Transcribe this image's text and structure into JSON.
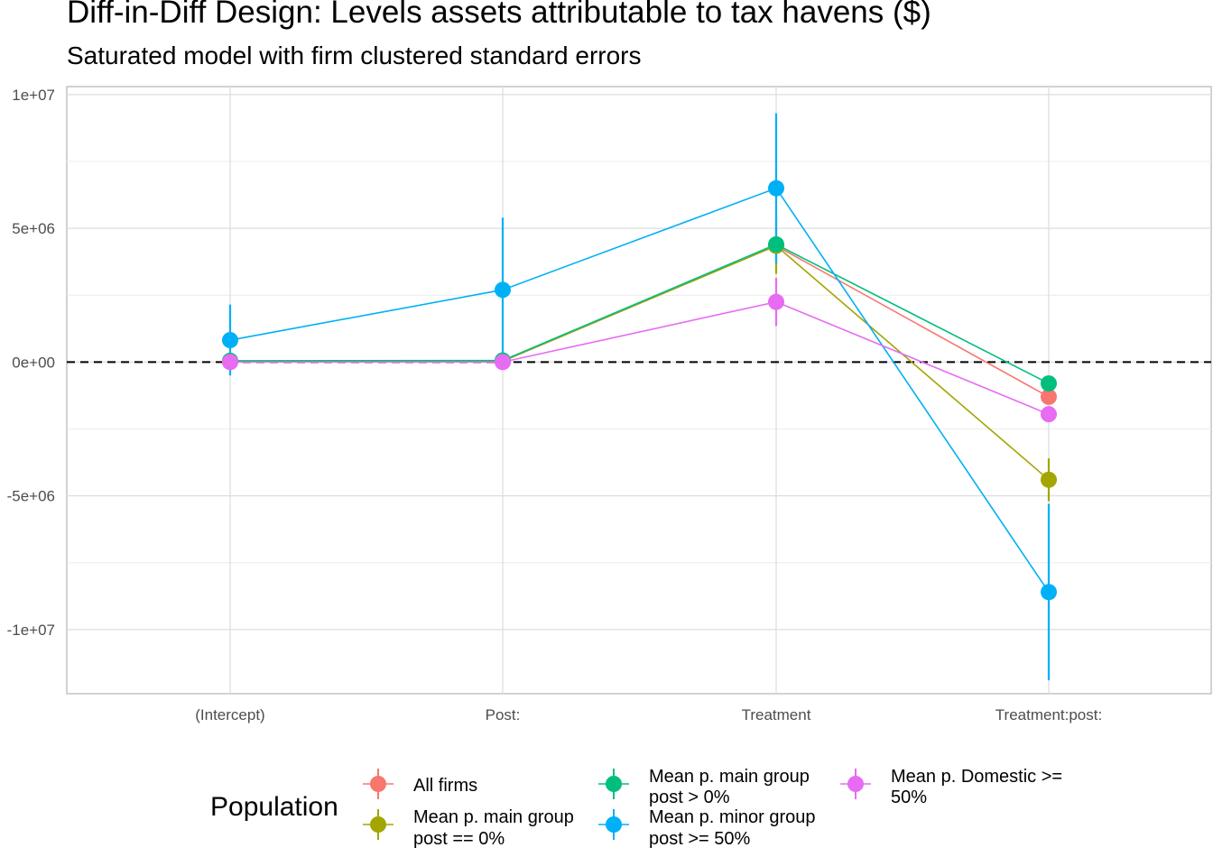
{
  "chart_data": {
    "type": "line",
    "title": "Diff-in-Diff Design: Levels assets attributable to tax havens  ($)",
    "subtitle": "Saturated model with firm clustered standard errors",
    "categories": [
      "(Intercept)",
      "Post:",
      "Treatment",
      "Treatment:post:"
    ],
    "ylim": [
      -12400000,
      10300000
    ],
    "y_ticks": [
      10000000,
      5000000,
      0,
      -5000000,
      -10000000
    ],
    "y_tick_labels": [
      "1e+07",
      "5e+06",
      "0e+00",
      "-5e+06",
      "-1e+07"
    ],
    "reference_line": 0,
    "grid": true,
    "legend_title": "Population",
    "legend_position": "bottom",
    "series": [
      {
        "name": "All firms",
        "color": "#F8766D",
        "values": [
          20000,
          30000,
          4350000,
          -1300000
        ],
        "lower": [
          -20000,
          -20000,
          4200000,
          -1450000
        ],
        "upper": [
          60000,
          80000,
          4500000,
          -1150000
        ]
      },
      {
        "name": "Mean p. main group post == 0%",
        "color": "#A3A500",
        "values": [
          30000,
          40000,
          4350000,
          -4400000
        ],
        "lower": [
          -10000,
          -10000,
          3300000,
          -5200000
        ],
        "upper": [
          70000,
          90000,
          5400000,
          -3600000
        ]
      },
      {
        "name": "Mean p. main group post > 0%",
        "color": "#00BF7D",
        "values": [
          50000,
          60000,
          4400000,
          -800000
        ],
        "lower": [
          0,
          0,
          4200000,
          -950000
        ],
        "upper": [
          100000,
          120000,
          4600000,
          -650000
        ]
      },
      {
        "name": "Mean p. minor group post >= 50%",
        "color": "#00B0F6",
        "values": [
          820000,
          2700000,
          6500000,
          -8600000
        ],
        "lower": [
          -500000,
          0,
          3700000,
          -11900000
        ],
        "upper": [
          2150000,
          5400000,
          9300000,
          -5300000
        ]
      },
      {
        "name": "Mean p. Domestic >= 50%",
        "color": "#E76BF3",
        "values": [
          0,
          0,
          2250000,
          -1950000
        ],
        "lower": [
          -50000,
          -50000,
          1350000,
          -2200000
        ],
        "upper": [
          50000,
          50000,
          3150000,
          -1700000
        ]
      }
    ]
  }
}
